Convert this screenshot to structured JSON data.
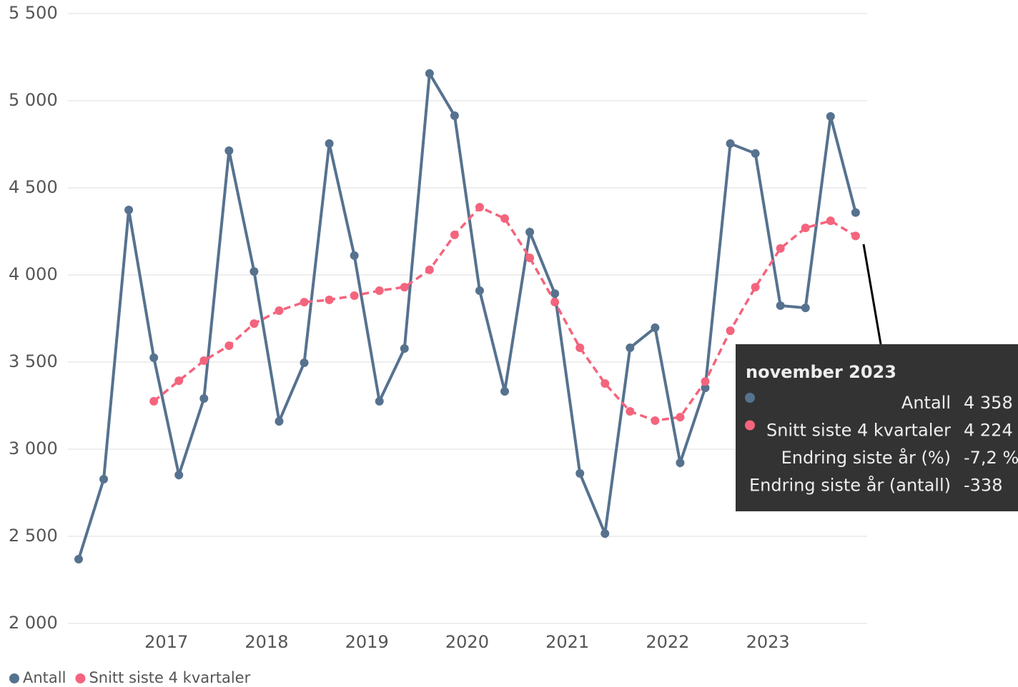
{
  "chart_data": {
    "type": "line",
    "categories": [
      null,
      null,
      null,
      null,
      "2017",
      null,
      null,
      null,
      "2018",
      null,
      null,
      null,
      "2019",
      null,
      null,
      null,
      "2020",
      null,
      null,
      null,
      "2021",
      null,
      null,
      null,
      "2022",
      null,
      null,
      null,
      "2023",
      null,
      null,
      null
    ],
    "series": [
      {
        "name": "Antall",
        "color": "#56728f",
        "dashed": false,
        "values": [
          2369,
          2828,
          4373,
          3525,
          2852,
          3291,
          4713,
          4020,
          3160,
          3496,
          4754,
          4111,
          3275,
          3578,
          5156,
          4914,
          3910,
          3332,
          4246,
          3893,
          2861,
          2516,
          3582,
          3697,
          2922,
          3352,
          4754,
          4697,
          3824,
          3811,
          4910,
          4358
        ]
      },
      {
        "name": "Snitt siste 4 kvartaler",
        "color": "#f4647d",
        "dashed": true,
        "values": [
          null,
          null,
          null,
          3275,
          3393,
          3508,
          3594,
          3721,
          3795,
          3844,
          3857,
          3881,
          3910,
          3930,
          4029,
          4230,
          4389,
          4324,
          4098,
          3844,
          3582,
          3377,
          3217,
          3164,
          3184,
          3389,
          3680,
          3930,
          4152,
          4270,
          4311,
          4224
        ]
      }
    ],
    "ylim": [
      2000,
      5500
    ],
    "yticks": [
      {
        "value": 2000,
        "label": "2 000"
      },
      {
        "value": 2500,
        "label": "2 500"
      },
      {
        "value": 3000,
        "label": "3 000"
      },
      {
        "value": 3500,
        "label": "3 500"
      },
      {
        "value": 4000,
        "label": "4 000"
      },
      {
        "value": 4500,
        "label": "4 500"
      },
      {
        "value": 5000,
        "label": "5 000"
      },
      {
        "value": 5500,
        "label": "5 500"
      }
    ],
    "grid": true,
    "legend": "bottom-left",
    "tooltip": {
      "title": "november 2023",
      "rows": [
        {
          "label": "Antall",
          "value": "4 358",
          "series": 0
        },
        {
          "label": "Snitt siste 4 kvartaler",
          "value": "4 224",
          "series": 1
        },
        {
          "label": "Endring siste år (%)",
          "value": "-7,2 %"
        },
        {
          "label": "Endring siste år (antall)",
          "value": "-338"
        }
      ]
    }
  }
}
